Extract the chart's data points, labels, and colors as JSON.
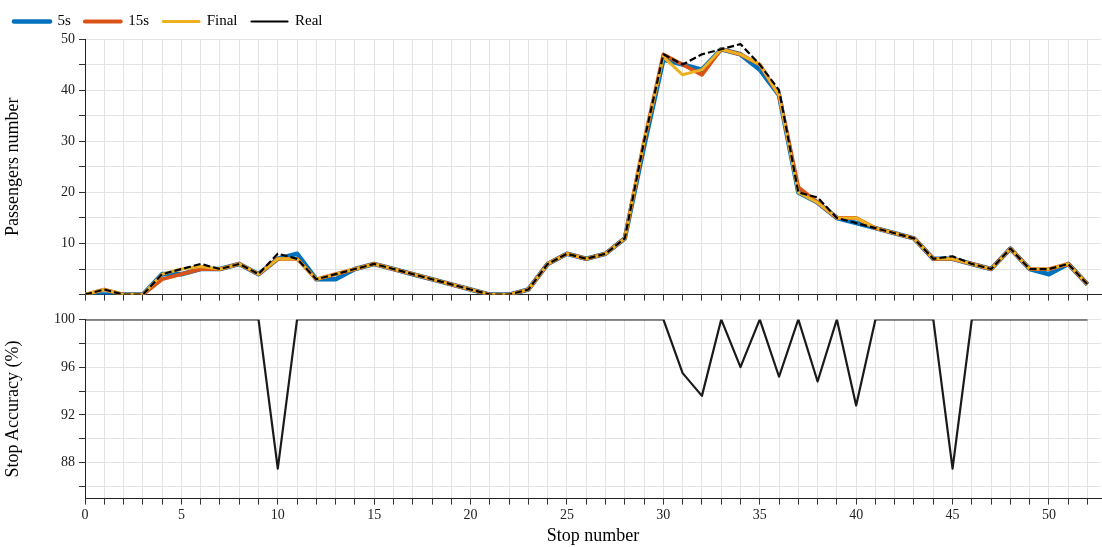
{
  "chart_data": [
    {
      "type": "line",
      "ylabel": "Passengers number",
      "x": [
        0,
        1,
        2,
        3,
        4,
        5,
        6,
        7,
        8,
        9,
        10,
        11,
        12,
        13,
        14,
        15,
        16,
        17,
        18,
        19,
        20,
        21,
        22,
        23,
        24,
        25,
        26,
        27,
        28,
        29,
        30,
        31,
        32,
        33,
        34,
        35,
        36,
        37,
        38,
        39,
        40,
        41,
        42,
        43,
        44,
        45,
        46,
        47,
        48,
        49,
        50,
        51,
        52
      ],
      "series": [
        {
          "name": "5s",
          "color": "#0072bd",
          "values": [
            0,
            0,
            0,
            0,
            4,
            4,
            5,
            5,
            6,
            4,
            7,
            8,
            3,
            3,
            5,
            6,
            5,
            4,
            3,
            2,
            1,
            0,
            0,
            1,
            6,
            8,
            7,
            8,
            11,
            29,
            46,
            45,
            44,
            48,
            47,
            44,
            39,
            20,
            18,
            15,
            14,
            13,
            12,
            11,
            7,
            7,
            6,
            5,
            9,
            5,
            4,
            6,
            2
          ]
        },
        {
          "name": "15s",
          "color": "#d95319",
          "values": [
            0,
            1,
            0,
            0,
            3,
            4,
            5,
            5,
            6,
            4,
            7,
            7,
            3,
            4,
            5,
            6,
            5,
            4,
            3,
            2,
            1,
            0,
            0,
            1,
            6,
            8,
            7,
            8,
            11,
            30,
            47,
            45,
            43,
            48,
            47,
            45,
            39,
            21,
            18,
            15,
            15,
            13,
            12,
            11,
            7,
            7,
            6,
            5,
            9,
            5,
            5,
            6,
            2
          ]
        },
        {
          "name": "Final",
          "color": "#edb120",
          "values": [
            0,
            1,
            0,
            0,
            4,
            5,
            5.5,
            5,
            6,
            4,
            7,
            7,
            3,
            4,
            5,
            6,
            5,
            4,
            3,
            2,
            1,
            0,
            0,
            1,
            6,
            8,
            7,
            8,
            11,
            30,
            46.5,
            43,
            44,
            48,
            47,
            45,
            39,
            20,
            18,
            15,
            15,
            13,
            12,
            11,
            7,
            7,
            6,
            5,
            9,
            5,
            5,
            6,
            2
          ]
        },
        {
          "name": "Real",
          "color": "#000000",
          "line_style": "dashed",
          "values": [
            0,
            1,
            0,
            0,
            4,
            5,
            6,
            5,
            6,
            4,
            8,
            7,
            3,
            4,
            5,
            6,
            5,
            4,
            3,
            2,
            1,
            0,
            0,
            1,
            6,
            8,
            7,
            8,
            11,
            30,
            47,
            45,
            47,
            48,
            49,
            45,
            40,
            20,
            19,
            15,
            14,
            13,
            12,
            11,
            7,
            7.5,
            6,
            5,
            9,
            5,
            5,
            6,
            2
          ]
        }
      ],
      "xlim": [
        0,
        52.7
      ],
      "ylim": [
        0,
        50
      ],
      "xticks": [
        0,
        {
          "value": 1,
          "label": null
        },
        {
          "value": 2,
          "label": null
        },
        {
          "value": 3,
          "label": null
        },
        {
          "value": 4,
          "label": null
        },
        5,
        {
          "value": 6,
          "label": null
        },
        {
          "value": 7,
          "label": null
        },
        {
          "value": 8,
          "label": null
        },
        {
          "value": 9,
          "label": null
        },
        10,
        {
          "value": 11,
          "label": null
        },
        {
          "value": 12,
          "label": null
        },
        {
          "value": 13,
          "label": null
        },
        {
          "value": 14,
          "label": null
        },
        15,
        {
          "value": 16,
          "label": null
        },
        {
          "value": 17,
          "label": null
        },
        {
          "value": 18,
          "label": null
        },
        {
          "value": 19,
          "label": null
        },
        20,
        {
          "value": 21,
          "label": null
        },
        {
          "value": 22,
          "label": null
        },
        {
          "value": 23,
          "label": null
        },
        {
          "value": 24,
          "label": null
        },
        25,
        {
          "value": 26,
          "label": null
        },
        {
          "value": 27,
          "label": null
        },
        {
          "value": 28,
          "label": null
        },
        {
          "value": 29,
          "label": null
        },
        30,
        {
          "value": 31,
          "label": null
        },
        {
          "value": 32,
          "label": null
        },
        {
          "value": 33,
          "label": null
        },
        {
          "value": 34,
          "label": null
        },
        35,
        {
          "value": 36,
          "label": null
        },
        {
          "value": 37,
          "label": null
        },
        {
          "value": 38,
          "label": null
        },
        {
          "value": 39,
          "label": null
        },
        40,
        {
          "value": 41,
          "label": null
        },
        {
          "value": 42,
          "label": null
        },
        {
          "value": 43,
          "label": null
        },
        {
          "value": 44,
          "label": null
        },
        45,
        {
          "value": 46,
          "label": null
        },
        {
          "value": 47,
          "label": null
        },
        {
          "value": 48,
          "label": null
        },
        {
          "value": 49,
          "label": null
        },
        50,
        {
          "value": 51,
          "label": null
        },
        {
          "value": 52,
          "label": null
        }
      ],
      "yticks": [
        {
          "value": 0,
          "label": null
        },
        {
          "value": 5,
          "label": null
        },
        10,
        {
          "value": 15,
          "label": null
        },
        20,
        {
          "value": 25,
          "label": null
        },
        30,
        {
          "value": 35,
          "label": null
        },
        40,
        {
          "value": 45,
          "label": null
        },
        50
      ],
      "tick_labels": "y",
      "grid": true,
      "legend": "top left",
      "marker": "none",
      "line_style": "solid"
    },
    {
      "type": "line",
      "xlabel": "Stop number",
      "ylabel": "Stop Accuracy (%)",
      "x": [
        0,
        1,
        2,
        3,
        4,
        5,
        6,
        7,
        8,
        9,
        10,
        11,
        12,
        13,
        14,
        15,
        16,
        17,
        18,
        19,
        20,
        21,
        22,
        23,
        24,
        25,
        26,
        27,
        28,
        29,
        30,
        31,
        32,
        33,
        34,
        35,
        36,
        37,
        38,
        39,
        40,
        41,
        42,
        43,
        44,
        45,
        46,
        47,
        48,
        49,
        50,
        51,
        52
      ],
      "series": [
        {
          "color": "#1a1a1a",
          "values": [
            100,
            100,
            100,
            100,
            100,
            100,
            100,
            100,
            100,
            100,
            87.5,
            100,
            100,
            100,
            100,
            100,
            100,
            100,
            100,
            100,
            100,
            100,
            100,
            100,
            100,
            100,
            100,
            100,
            100,
            100,
            100,
            95.5,
            93.6,
            100,
            96,
            100,
            95.2,
            100,
            94.8,
            100,
            92.8,
            100,
            100,
            100,
            100,
            87.5,
            100,
            100,
            100,
            100,
            100,
            100,
            100
          ]
        }
      ],
      "xlim": [
        0,
        52.7
      ],
      "ylim": [
        85,
        100
      ],
      "xticks": [
        0,
        {
          "value": 1,
          "label": null
        },
        {
          "value": 2,
          "label": null
        },
        {
          "value": 3,
          "label": null
        },
        {
          "value": 4,
          "label": null
        },
        5,
        {
          "value": 6,
          "label": null
        },
        {
          "value": 7,
          "label": null
        },
        {
          "value": 8,
          "label": null
        },
        {
          "value": 9,
          "label": null
        },
        10,
        {
          "value": 11,
          "label": null
        },
        {
          "value": 12,
          "label": null
        },
        {
          "value": 13,
          "label": null
        },
        {
          "value": 14,
          "label": null
        },
        15,
        {
          "value": 16,
          "label": null
        },
        {
          "value": 17,
          "label": null
        },
        {
          "value": 18,
          "label": null
        },
        {
          "value": 19,
          "label": null
        },
        20,
        {
          "value": 21,
          "label": null
        },
        {
          "value": 22,
          "label": null
        },
        {
          "value": 23,
          "label": null
        },
        {
          "value": 24,
          "label": null
        },
        25,
        {
          "value": 26,
          "label": null
        },
        {
          "value": 27,
          "label": null
        },
        {
          "value": 28,
          "label": null
        },
        {
          "value": 29,
          "label": null
        },
        30,
        {
          "value": 31,
          "label": null
        },
        {
          "value": 32,
          "label": null
        },
        {
          "value": 33,
          "label": null
        },
        {
          "value": 34,
          "label": null
        },
        35,
        {
          "value": 36,
          "label": null
        },
        {
          "value": 37,
          "label": null
        },
        {
          "value": 38,
          "label": null
        },
        {
          "value": 39,
          "label": null
        },
        40,
        {
          "value": 41,
          "label": null
        },
        {
          "value": 42,
          "label": null
        },
        {
          "value": 43,
          "label": null
        },
        {
          "value": 44,
          "label": null
        },
        45,
        {
          "value": 46,
          "label": null
        },
        {
          "value": 47,
          "label": null
        },
        {
          "value": 48,
          "label": null
        },
        {
          "value": 49,
          "label": null
        },
        50,
        {
          "value": 51,
          "label": null
        },
        {
          "value": 52,
          "label": null
        }
      ],
      "yticks": [
        {
          "value": 86,
          "label": null
        },
        88,
        {
          "value": 90,
          "label": null
        },
        92,
        {
          "value": 94,
          "label": null
        },
        96,
        {
          "value": 98,
          "label": null
        },
        100
      ],
      "grid": true,
      "marker": "none",
      "line_style": "solid"
    }
  ]
}
